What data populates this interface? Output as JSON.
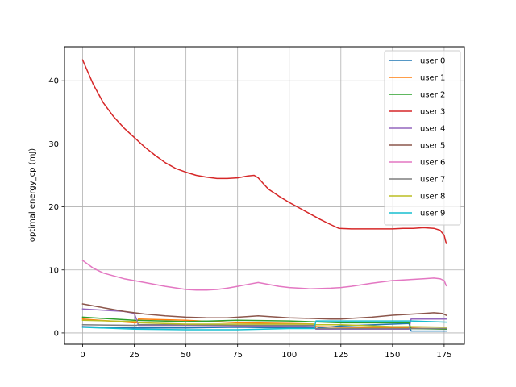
{
  "chart_data": {
    "type": "line",
    "title": "",
    "xlabel": "",
    "ylabel": "optimal energy_cp (mJ)",
    "xlim": [
      -8.8,
      184.8
    ],
    "ylim": [
      -1.8,
      45.4
    ],
    "xticks": [
      0,
      25,
      50,
      75,
      100,
      125,
      150,
      175
    ],
    "xtick_labels": [
      "0",
      "25",
      "50",
      "75",
      "100",
      "125",
      "150",
      "175"
    ],
    "yticks": [
      0,
      10,
      20,
      30,
      40
    ],
    "ytick_labels": [
      "0",
      "10",
      "20",
      "30",
      "40"
    ],
    "grid": true,
    "legend_position": "upper right",
    "series": [
      {
        "name": "user 0",
        "color": "#1f77b4",
        "x": [
          0,
          10,
          25,
          26,
          27,
          50,
          75,
          100,
          112,
          113,
          114,
          125,
          150,
          158,
          159,
          160,
          176
        ],
        "y": [
          1.0,
          0.9,
          0.8,
          0.8,
          0.8,
          0.8,
          0.9,
          0.8,
          0.8,
          0.6,
          0.8,
          1.1,
          1.4,
          1.5,
          0.3,
          0.3,
          0.3
        ]
      },
      {
        "name": "user 1",
        "color": "#ff7f0e",
        "x": [
          0,
          25,
          26,
          27,
          50,
          75,
          100,
          112,
          113,
          114,
          125,
          150,
          158,
          159,
          176
        ],
        "y": [
          2.2,
          1.6,
          1.6,
          2.2,
          2.0,
          1.6,
          1.5,
          1.4,
          1.0,
          1.0,
          0.9,
          0.8,
          0.8,
          0.8,
          0.6
        ]
      },
      {
        "name": "user 2",
        "color": "#2ca02c",
        "x": [
          0,
          25,
          50,
          75,
          100,
          125,
          150,
          158,
          159,
          176
        ],
        "y": [
          2.5,
          2.0,
          1.8,
          2.0,
          1.9,
          1.6,
          1.6,
          1.6,
          0.7,
          0.6
        ]
      },
      {
        "name": "user 3",
        "color": "#d62728",
        "x": [
          0,
          5,
          10,
          15,
          20,
          25,
          30,
          35,
          40,
          45,
          50,
          55,
          60,
          65,
          70,
          75,
          80,
          83,
          85,
          88,
          90,
          95,
          100,
          105,
          110,
          115,
          120,
          124,
          130,
          135,
          140,
          145,
          150,
          155,
          160,
          165,
          170,
          173,
          175,
          176
        ],
        "y": [
          43.3,
          39.5,
          36.5,
          34.3,
          32.5,
          31.0,
          29.5,
          28.2,
          27.0,
          26.1,
          25.5,
          25.0,
          24.7,
          24.5,
          24.5,
          24.6,
          24.9,
          25.0,
          24.6,
          23.5,
          22.8,
          21.7,
          20.7,
          19.8,
          18.9,
          18.0,
          17.2,
          16.6,
          16.5,
          16.5,
          16.5,
          16.5,
          16.5,
          16.6,
          16.6,
          16.7,
          16.6,
          16.3,
          15.5,
          14.2
        ]
      },
      {
        "name": "user 4",
        "color": "#9467bd",
        "x": [
          0,
          10,
          20,
          25,
          26,
          27,
          50,
          75,
          100,
          112,
          113,
          125,
          150,
          158,
          159,
          176
        ],
        "y": [
          3.8,
          3.6,
          3.4,
          3.1,
          2.2,
          1.2,
          1.2,
          1.1,
          1.1,
          1.0,
          0.6,
          0.6,
          0.6,
          0.6,
          2.2,
          2.2
        ]
      },
      {
        "name": "user 5",
        "color": "#8c564b",
        "x": [
          0,
          10,
          20,
          30,
          40,
          50,
          60,
          70,
          80,
          85,
          90,
          100,
          110,
          120,
          125,
          130,
          140,
          150,
          160,
          165,
          170,
          174,
          176
        ],
        "y": [
          4.6,
          4.0,
          3.4,
          3.0,
          2.7,
          2.5,
          2.4,
          2.4,
          2.6,
          2.7,
          2.6,
          2.4,
          2.3,
          2.2,
          2.2,
          2.3,
          2.5,
          2.8,
          3.0,
          3.1,
          3.2,
          3.1,
          2.8
        ]
      },
      {
        "name": "user 6",
        "color": "#e377c2",
        "x": [
          0,
          5,
          10,
          20,
          30,
          40,
          50,
          55,
          60,
          65,
          70,
          75,
          80,
          85,
          90,
          95,
          100,
          110,
          120,
          125,
          130,
          140,
          150,
          160,
          165,
          170,
          173,
          175,
          176
        ],
        "y": [
          11.5,
          10.3,
          9.5,
          8.6,
          8.0,
          7.4,
          6.9,
          6.8,
          6.8,
          6.9,
          7.1,
          7.4,
          7.7,
          8.0,
          7.7,
          7.4,
          7.2,
          7.0,
          7.1,
          7.2,
          7.4,
          7.9,
          8.3,
          8.5,
          8.6,
          8.7,
          8.6,
          8.3,
          7.5
        ]
      },
      {
        "name": "user 7",
        "color": "#7f7f7f",
        "x": [
          0,
          25,
          26,
          27,
          50,
          75,
          100,
          112,
          113,
          114,
          125,
          150,
          158,
          159,
          176
        ],
        "y": [
          1.3,
          1.2,
          1.2,
          1.3,
          1.3,
          1.2,
          1.2,
          1.2,
          0.7,
          0.7,
          0.7,
          0.7,
          0.7,
          0.7,
          0.7
        ]
      },
      {
        "name": "user 8",
        "color": "#bcbd22",
        "x": [
          0,
          25,
          26,
          27,
          50,
          75,
          100,
          112,
          113,
          114,
          125,
          150,
          158,
          159,
          176
        ],
        "y": [
          2.0,
          1.8,
          1.8,
          1.6,
          1.4,
          1.4,
          1.4,
          1.4,
          1.3,
          1.3,
          1.3,
          1.0,
          1.0,
          1.0,
          0.9
        ]
      },
      {
        "name": "user 9",
        "color": "#17becf",
        "x": [
          0,
          25,
          50,
          75,
          100,
          112,
          113,
          114,
          125,
          150,
          158,
          159,
          176
        ],
        "y": [
          0.9,
          0.6,
          0.5,
          0.5,
          0.7,
          0.7,
          1.9,
          1.9,
          1.9,
          1.9,
          1.9,
          1.9,
          1.7
        ]
      }
    ]
  }
}
